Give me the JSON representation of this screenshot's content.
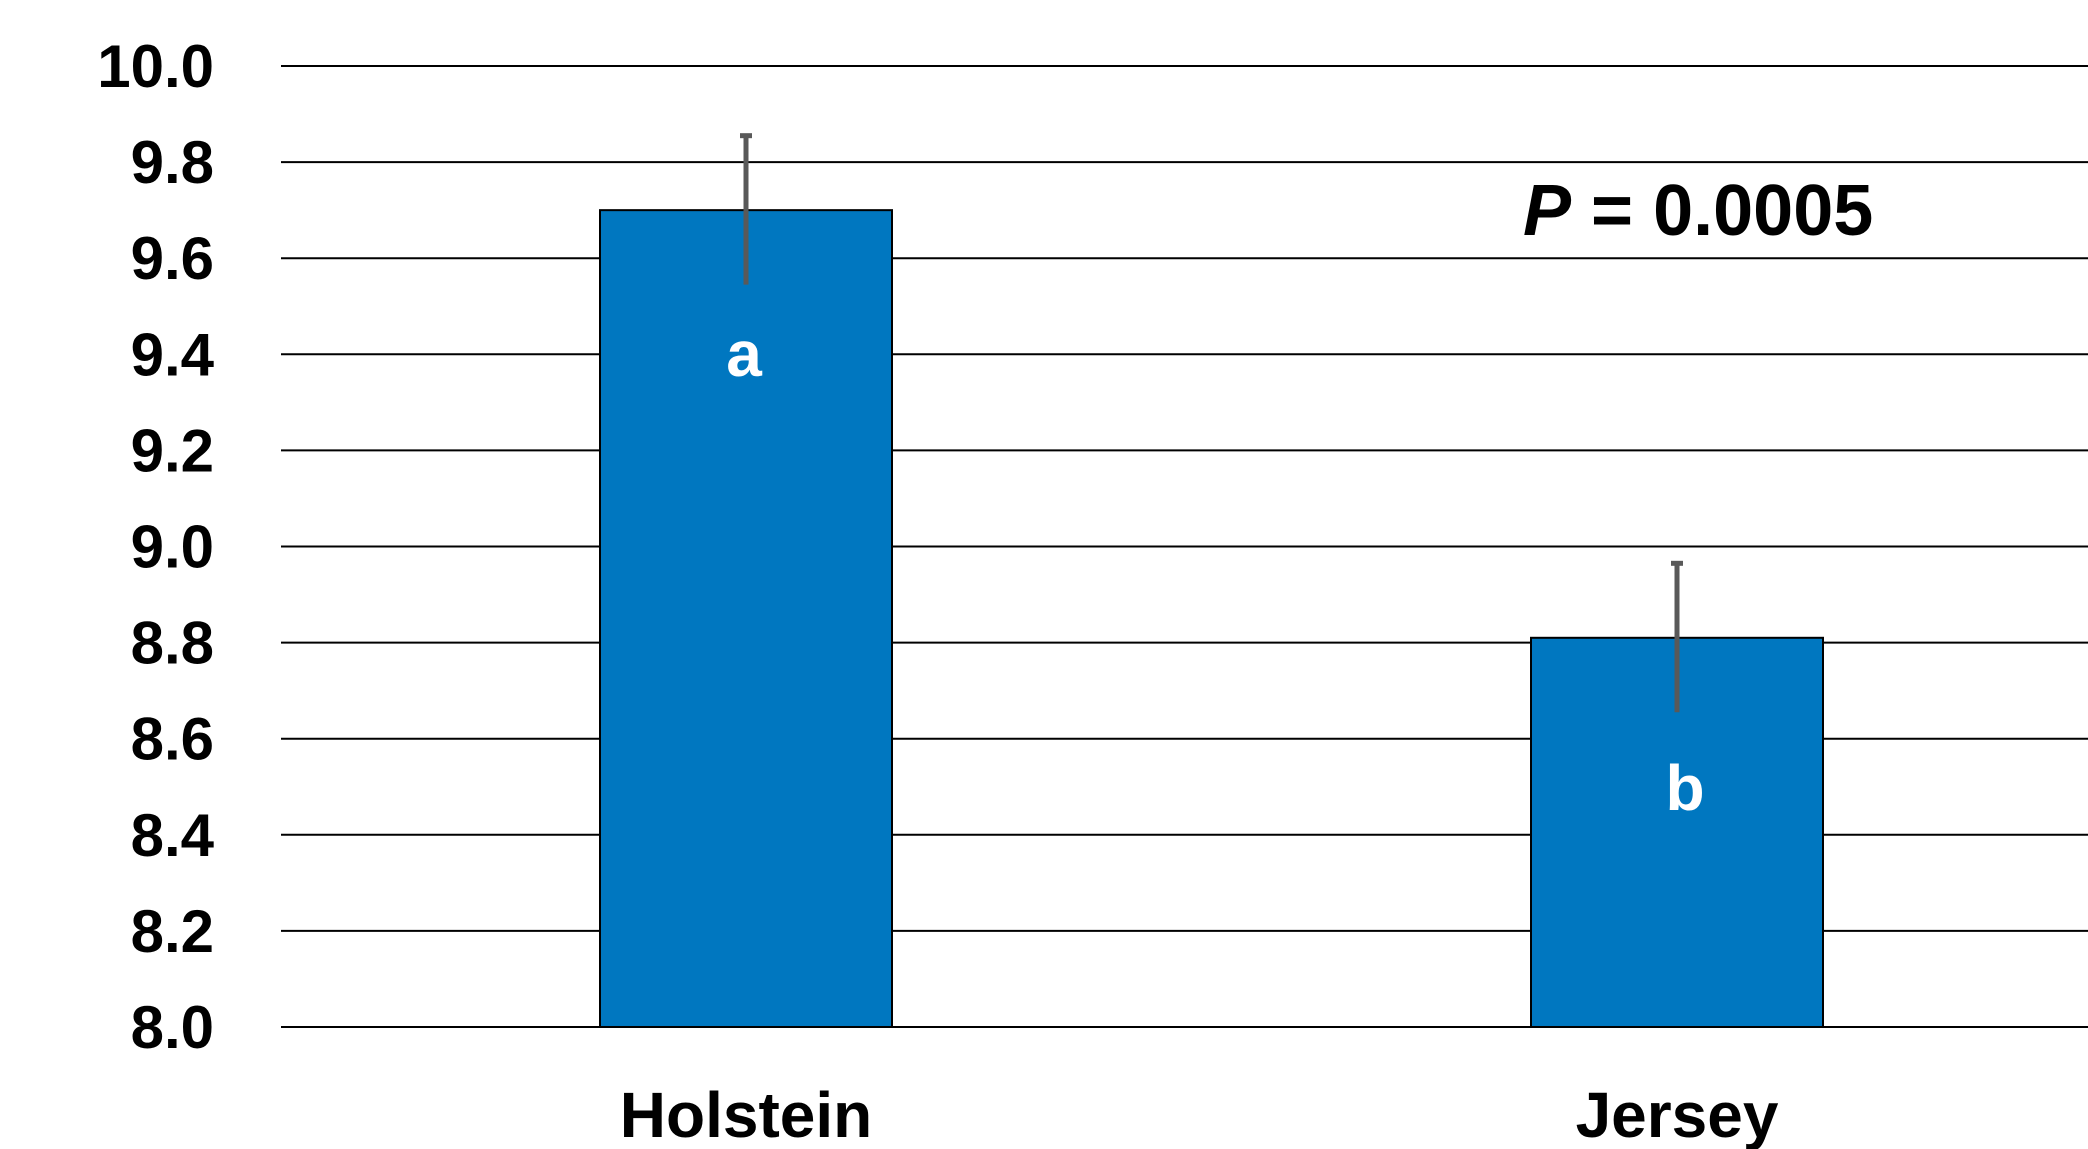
{
  "chart_data": {
    "type": "bar",
    "title": "",
    "xlabel": "",
    "ylabel": "",
    "ylim": [
      8.0,
      10.0
    ],
    "yticks": [
      8.0,
      8.2,
      8.4,
      8.6,
      8.8,
      9.0,
      9.2,
      9.4,
      9.6,
      9.8,
      10.0
    ],
    "ytick_labels": [
      "8.0",
      "8.2",
      "8.4",
      "8.6",
      "8.8",
      "9.0",
      "9.2",
      "9.4",
      "9.6",
      "9.8",
      "10.0"
    ],
    "grid": true,
    "categories": [
      "Holstein",
      "Jersey"
    ],
    "values": [
      9.7,
      8.81
    ],
    "error": [
      0.155,
      0.155
    ],
    "bar_letters": [
      "a",
      "b"
    ],
    "bar_color": "#0077C0",
    "error_color": "#595959",
    "annotation": {
      "italic_part": "P",
      "text_part": " = 0.0005"
    }
  }
}
